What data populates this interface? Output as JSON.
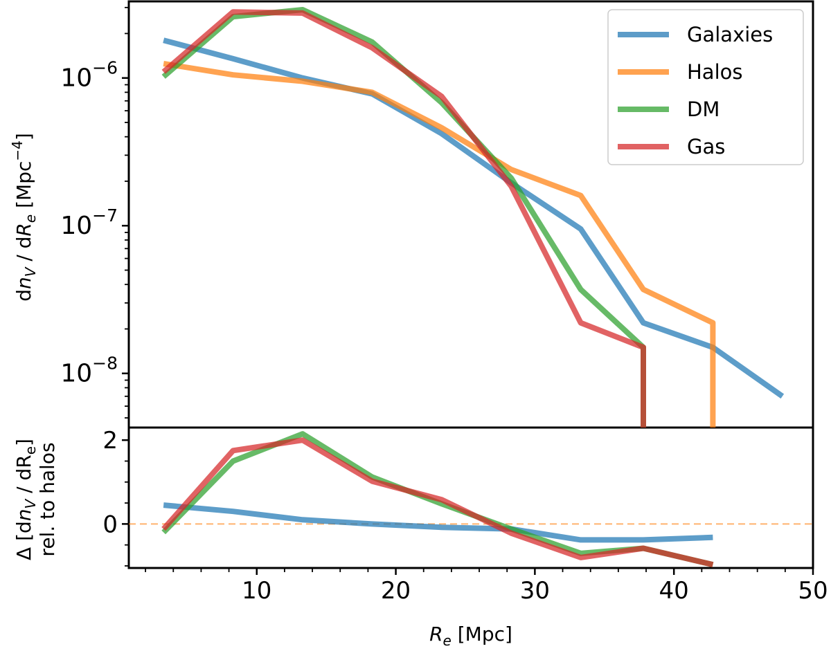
{
  "chart_data": {
    "type": "line",
    "xlabel": {
      "symbol": "R",
      "sub": "e",
      "unit": " [Mpc]"
    },
    "xlim": [
      0.8,
      50
    ],
    "x_ticks": [
      10,
      20,
      30,
      40,
      50
    ],
    "x_tick_labels": [
      "10",
      "20",
      "30",
      "40",
      "50"
    ],
    "legend_position": "top-right",
    "colors": {
      "Galaxies": "#1f77b4",
      "Halos": "#ff7f0e",
      "DM": "#2ca02c",
      "Gas": "#d62728"
    },
    "top_panel": {
      "ylabel_parts": {
        "d1": "d",
        "n": "n",
        "nsub": "V",
        "slash": " / d",
        "R": "R",
        "Rsub": "e",
        "unit_open": " [Mpc",
        "unit_exp": "−4",
        "unit_close": "]"
      },
      "yscale": "log",
      "ylim": [
        4.3e-09,
        3.3e-06
      ],
      "y_ticks": [
        1e-08,
        1e-07,
        1e-06
      ],
      "y_tick_base": "10",
      "y_tick_exponents": [
        "−8",
        "−7",
        "−6"
      ],
      "series": [
        {
          "name": "Galaxies",
          "x": [
            3.3,
            8.3,
            13.3,
            18.3,
            23.3,
            28.3,
            33.3,
            37.8,
            42.8,
            47.8
          ],
          "values": [
            1.8e-06,
            1.35e-06,
            1e-06,
            7.8e-07,
            4.2e-07,
            1.95e-07,
            9.5e-08,
            2.2e-08,
            1.5e-08,
            7e-09
          ]
        },
        {
          "name": "Halos",
          "x": [
            3.3,
            8.3,
            13.3,
            18.3,
            23.3,
            28.3,
            33.3,
            37.8,
            42.8,
            42.8
          ],
          "values": [
            1.25e-06,
            1.05e-06,
            9.5e-07,
            8e-07,
            4.6e-07,
            2.4e-07,
            1.6e-07,
            3.7e-08,
            2.2e-08,
            4.3e-09
          ]
        },
        {
          "name": "DM",
          "x": [
            3.3,
            8.3,
            13.3,
            18.3,
            23.3,
            28.3,
            33.3,
            37.8,
            37.8
          ],
          "values": [
            1.02e-06,
            2.6e-06,
            2.9e-06,
            1.75e-06,
            6.8e-07,
            2.1e-07,
            3.7e-08,
            1.5e-08,
            4.3e-09
          ]
        },
        {
          "name": "Gas",
          "x": [
            3.3,
            8.3,
            13.3,
            18.3,
            23.3,
            28.3,
            33.3,
            37.8,
            37.8
          ],
          "values": [
            1.1e-06,
            2.8e-06,
            2.75e-06,
            1.6e-06,
            7.5e-07,
            1.85e-07,
            2.2e-08,
            1.5e-08,
            4.3e-09
          ]
        }
      ]
    },
    "bottom_panel": {
      "ylabel_line1_parts": {
        "delta": "Δ [d",
        "n": "n",
        "nsub": "V",
        "slash": " / d",
        "R": "R",
        "Rsub": "e",
        "close": "]"
      },
      "ylabel_line2": "rel. to halos",
      "ylim": [
        -1.05,
        2.3
      ],
      "y_ticks": [
        0,
        2
      ],
      "y_tick_labels": [
        "0",
        "2"
      ],
      "reference_line": {
        "y": 0,
        "style": "dashed",
        "color_series": "Halos"
      },
      "series": [
        {
          "name": "Galaxies",
          "x": [
            3.3,
            8.3,
            13.3,
            18.3,
            23.3,
            28.3,
            33.3,
            37.8,
            42.8
          ],
          "values": [
            0.45,
            0.3,
            0.1,
            0.0,
            -0.08,
            -0.12,
            -0.38,
            -0.38,
            -0.32
          ]
        },
        {
          "name": "DM",
          "x": [
            3.3,
            8.3,
            13.3,
            18.3,
            23.3,
            28.3,
            33.3,
            37.8,
            42.8
          ],
          "values": [
            -0.2,
            1.5,
            2.15,
            1.12,
            0.48,
            -0.12,
            -0.7,
            -0.58,
            -0.97
          ]
        },
        {
          "name": "Gas",
          "x": [
            3.3,
            8.3,
            13.3,
            18.3,
            23.3,
            28.3,
            33.3,
            37.8,
            42.8
          ],
          "values": [
            -0.12,
            1.75,
            2.0,
            1.02,
            0.58,
            -0.22,
            -0.8,
            -0.58,
            -0.97
          ]
        }
      ]
    }
  }
}
